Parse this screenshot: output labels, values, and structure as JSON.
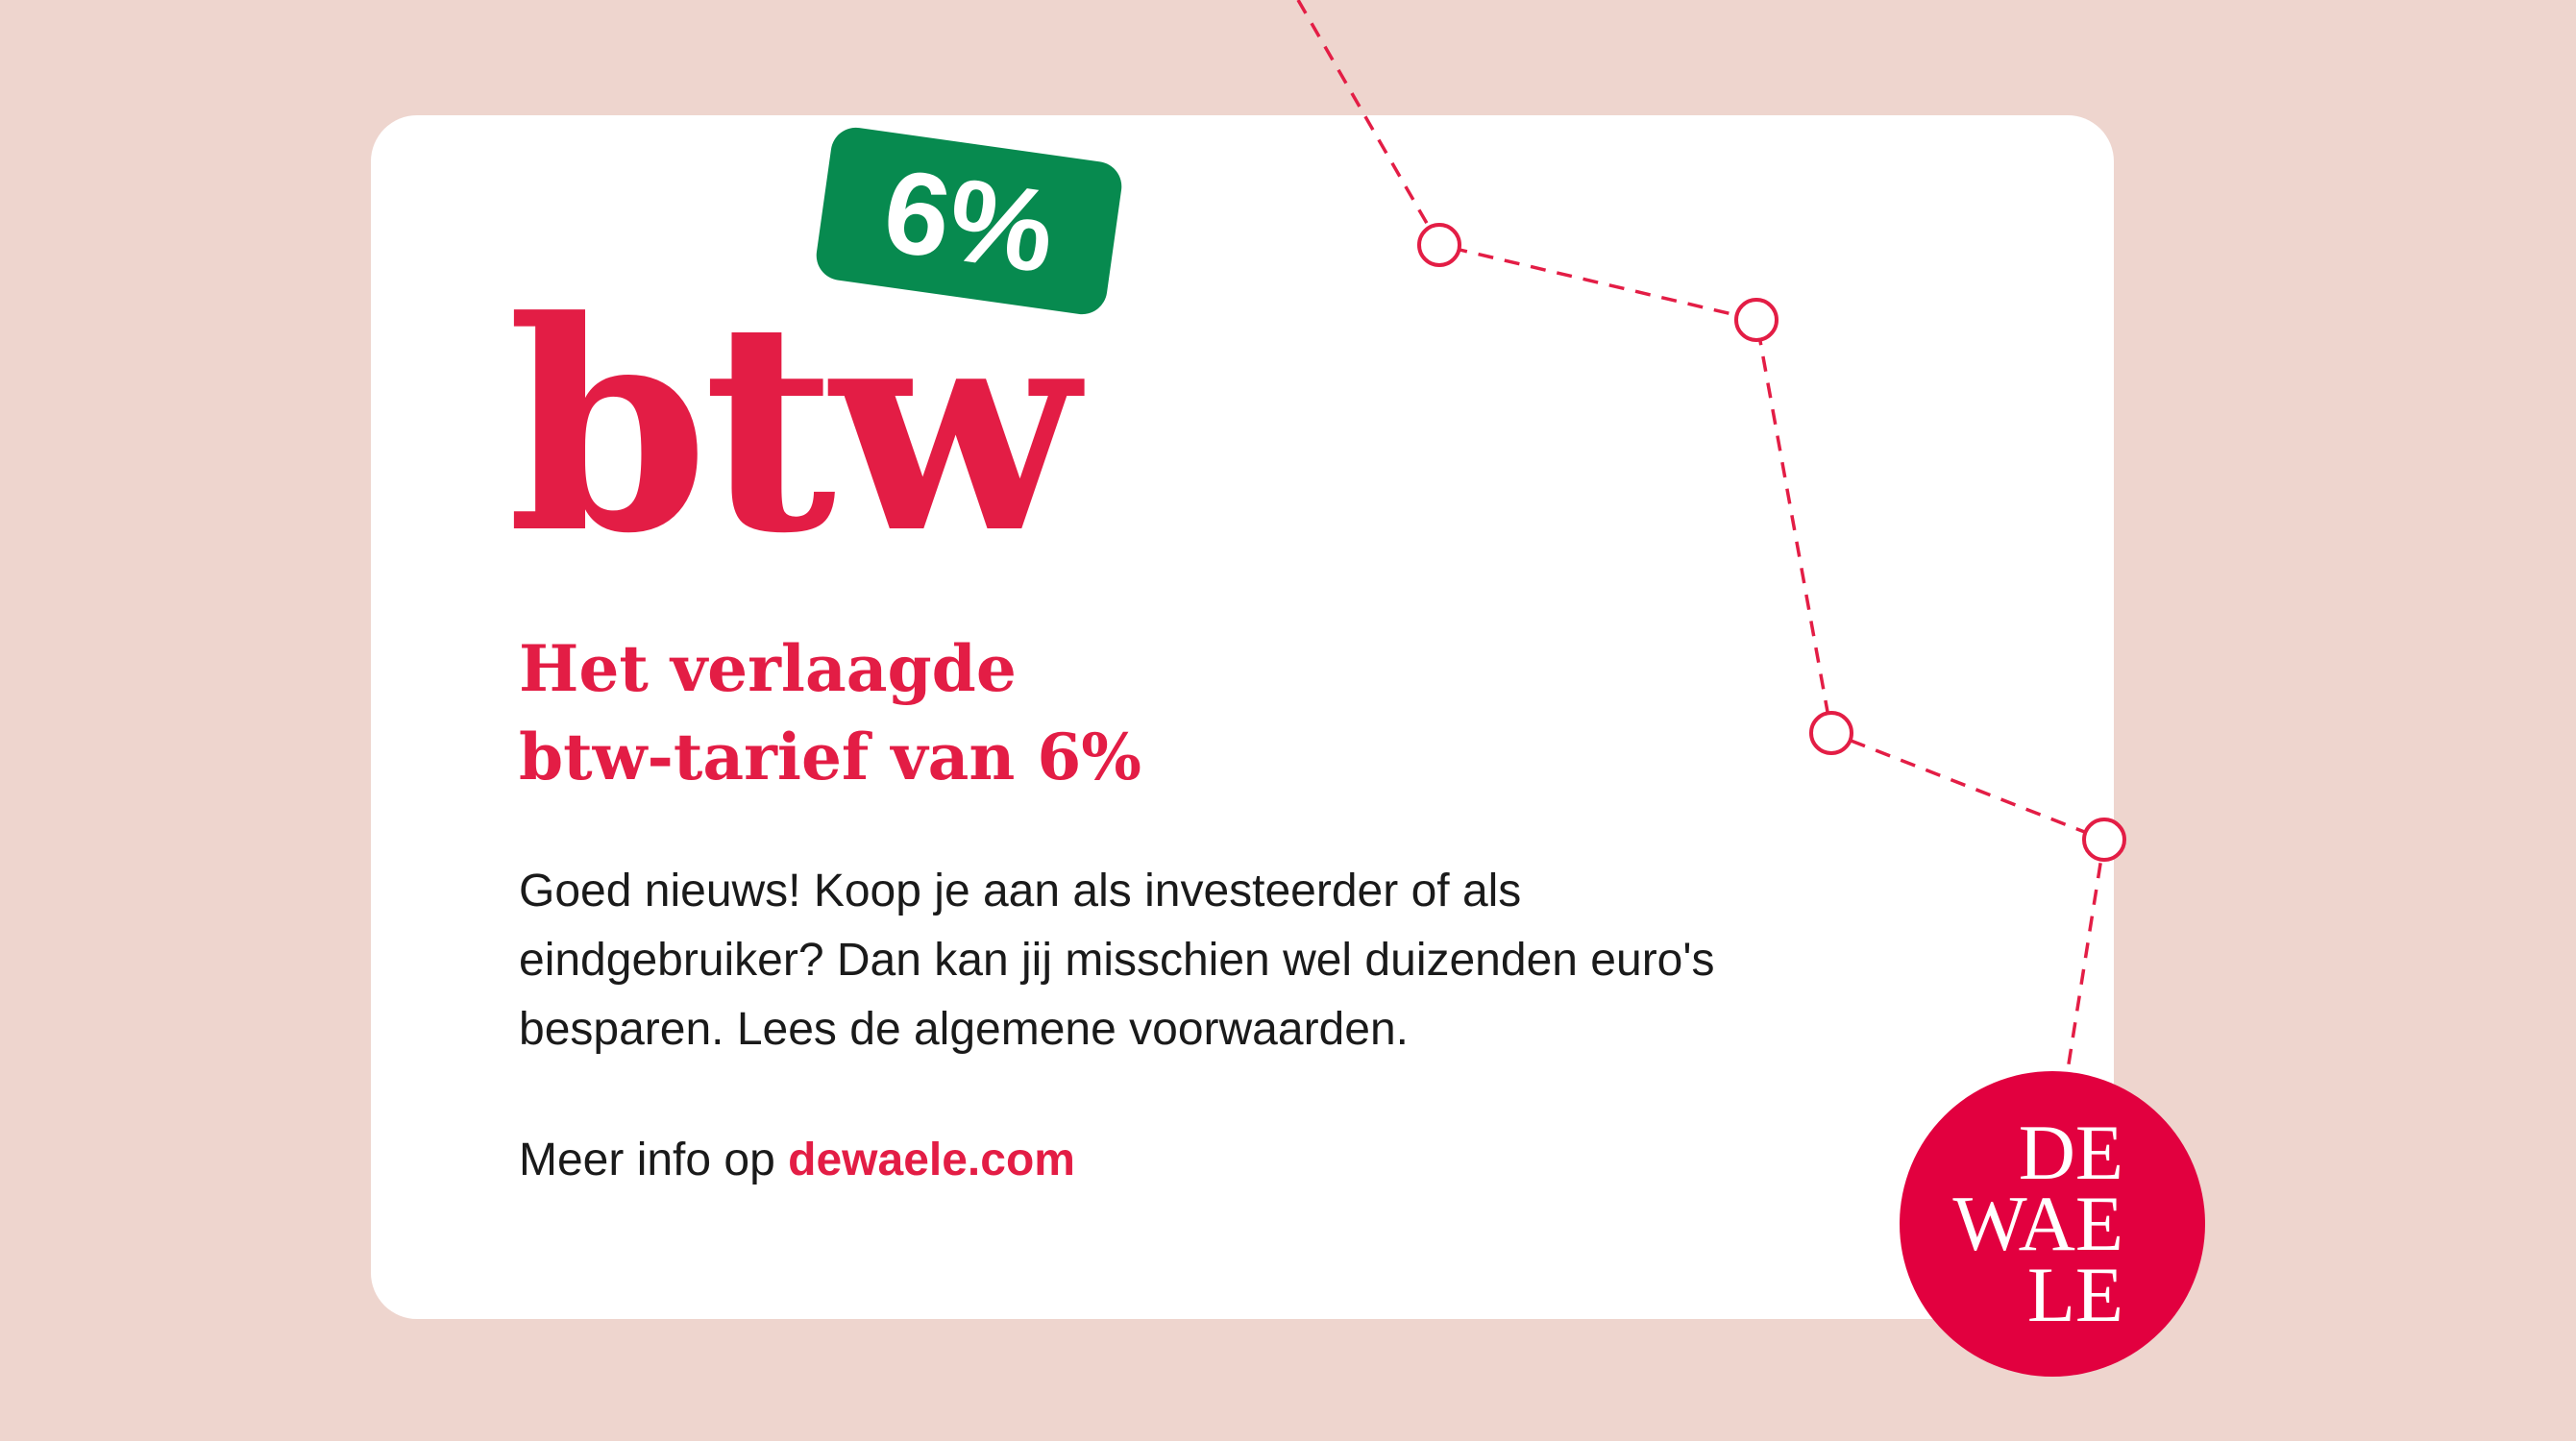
{
  "colors": {
    "background": "#eed5ce",
    "card": "#ffffff",
    "brand_red": "#e31d45",
    "badge_green": "#078a4f",
    "logo_red": "#e2003f"
  },
  "hero": {
    "btw": "btw",
    "badge": "6%"
  },
  "heading": {
    "line1": "Het verlaagde",
    "line2": "btw-tarief van 6%"
  },
  "body": "Goed nieuws! Koop je aan als investeerder of als eindgebruiker? Dan kan jij misschien wel duizenden euro's besparen. Lees de algemene voorwaarden.",
  "more": {
    "prefix": "Meer info op ",
    "link": "dewaele.com"
  },
  "logo": {
    "line1": "DE",
    "line2": "WAE",
    "line3": "LE"
  }
}
